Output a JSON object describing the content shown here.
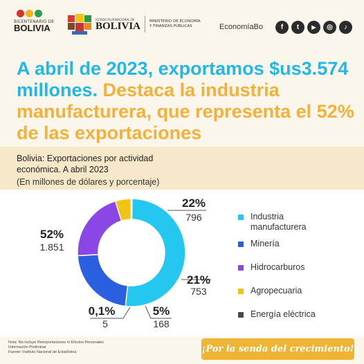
{
  "header": {
    "bicentenario_small": "BICENTENARIO DE",
    "bicentenario_big": "BOLIVIA",
    "gov_small": "ESTADO PLURINACIONAL DE",
    "gov_big": "BOLIVIA",
    "ministry_line1": "MINISTERIO DE ECONOMÍA",
    "ministry_line2": "Y FINANZAS PÚBLICAS",
    "brand": "EconomíaBo",
    "socials": [
      {
        "icon": "facebook-icon",
        "glyph": "f"
      },
      {
        "icon": "twitter-icon",
        "glyph": "t"
      },
      {
        "icon": "youtube-icon",
        "glyph": "▶"
      },
      {
        "icon": "instagram-icon",
        "glyph": "◎"
      },
      {
        "icon": "tiktok-icon",
        "glyph": "♪"
      }
    ]
  },
  "headline": {
    "part1": "A abril de 2023, exportamos $us3.574 millones.",
    "part2": "Destaca la industria manufacturera, que representa el 52% de las exportaciones"
  },
  "chart_data": {
    "type": "pie",
    "title": "Bolivia: Exportaciones por actividad económica. A abril 2023",
    "subtitle": "(En millones de dólares y porcentaje)",
    "categories": [
      "Industria manufacturera",
      "Minería",
      "Hidrocarburos",
      "Agropecuaria",
      "Energía eléctrica"
    ],
    "values": [
      1851,
      796,
      753,
      168,
      5
    ],
    "value_labels": [
      "1.851",
      "796",
      "753",
      "168",
      "5"
    ],
    "percent_labels": [
      "52%",
      "22%",
      "21%",
      "5%",
      "0,1%"
    ],
    "colors": [
      "#25c7f0",
      "#2a5fe0",
      "#8a47e6",
      "#f2c315",
      "#4a4a4a"
    ],
    "legend_placement": "right"
  },
  "footer": {
    "note1": "Nota: No incluye Reexportaciones ni Efectos Personales",
    "note2": "Información Preliminar",
    "note3": "Fuente: Instituto Nacional de Estadística",
    "slogan": "¡Por la senda del crecimiento!"
  }
}
